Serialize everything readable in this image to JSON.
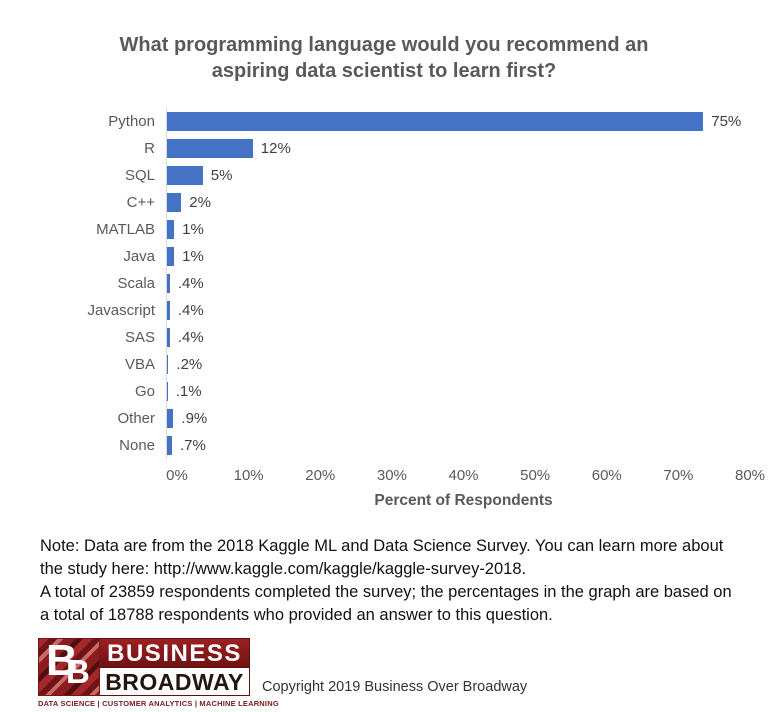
{
  "title": {
    "lines": [
      "What programming language would you recommend an",
      "aspiring data scientist to learn first?"
    ]
  },
  "chart_data": {
    "type": "bar",
    "orientation": "horizontal",
    "title": "What programming language would you recommend an aspiring data scientist to learn first?",
    "categories": [
      "Python",
      "R",
      "SQL",
      "C++",
      "MATLAB",
      "Java",
      "Scala",
      "Javascript",
      "SAS",
      "VBA",
      "Go",
      "Other",
      "None"
    ],
    "values": [
      75,
      12,
      5,
      2,
      1,
      1,
      0.4,
      0.4,
      0.4,
      0.2,
      0.1,
      0.9,
      0.7
    ],
    "value_labels": [
      "75%",
      "12%",
      "5%",
      "2%",
      "1%",
      "1%",
      ".4%",
      ".4%",
      ".4%",
      ".2%",
      ".1%",
      ".9%",
      ".7%"
    ],
    "xlabel": "Percent of Respondents",
    "ylabel": "",
    "x_ticks": [
      "0%",
      "10%",
      "20%",
      "30%",
      "40%",
      "50%",
      "60%",
      "70%",
      "80%"
    ],
    "xlim": [
      0,
      80
    ],
    "grid": false,
    "legend": false,
    "bar_color": "#4472C4"
  },
  "note": {
    "lines": [
      "Note: Data are from the 2018 Kaggle ML and Data Science Survey. You can learn more about",
      "the study here: http://www.kaggle.com/kaggle/kaggle-survey-2018.",
      "A total of 23859 respondents completed the survey; the percentages in the graph are based on",
      "a total of 18788 respondents who provided an answer to this question."
    ]
  },
  "footer": {
    "logo": {
      "b1": "B",
      "b2": "B",
      "line1": "BUSINESS",
      "line2": "BROADWAY",
      "tagline": "DATA SCIENCE  |  CUSTOMER ANALYTICS  |  MACHINE LEARNING"
    },
    "copyright": "Copyright 2019 Business Over Broadway"
  },
  "colors": {
    "bar": "#4472C4",
    "axis_line": "#D9D9D9",
    "tick_label": "#595959",
    "title_text": "#595959",
    "logo_red": "#8B1A1A"
  }
}
